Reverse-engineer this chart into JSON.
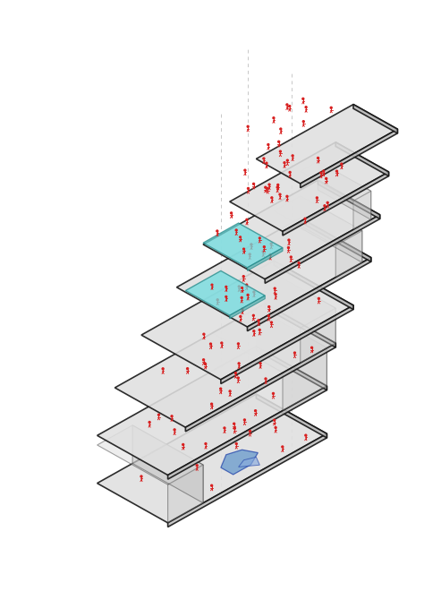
{
  "background_color": "#ffffff",
  "floor_color": "#d8d8d8",
  "floor_top_color": "#e0e0e0",
  "floor_front_color": "#c0c0c0",
  "floor_right_color": "#b8b8b8",
  "floor_edge_color": "#111111",
  "floor_alpha": 0.85,
  "red_color": "#e03030",
  "cyan_color": "#70dde0",
  "blue_wind_color": "#a8d8e8",
  "figure_color": "#d82020",
  "dashed_line_color": "#aaaaaa",
  "figsize": [
    4.74,
    6.7
  ],
  "dpi": 100,
  "floors": [
    [
      0.0,
      2.5,
      0.0,
      9.0,
      4.0
    ],
    [
      0.0,
      2.5,
      1.5,
      9.0,
      4.0
    ],
    [
      0.5,
      2.0,
      3.0,
      8.5,
      4.0
    ],
    [
      1.5,
      1.0,
      4.5,
      7.5,
      4.5
    ],
    [
      2.5,
      0.5,
      6.0,
      7.0,
      4.0
    ],
    [
      3.0,
      0.0,
      7.5,
      6.5,
      3.5
    ],
    [
      3.5,
      -0.5,
      9.0,
      6.0,
      3.0
    ],
    [
      4.0,
      -1.0,
      10.5,
      5.5,
      2.5
    ]
  ]
}
